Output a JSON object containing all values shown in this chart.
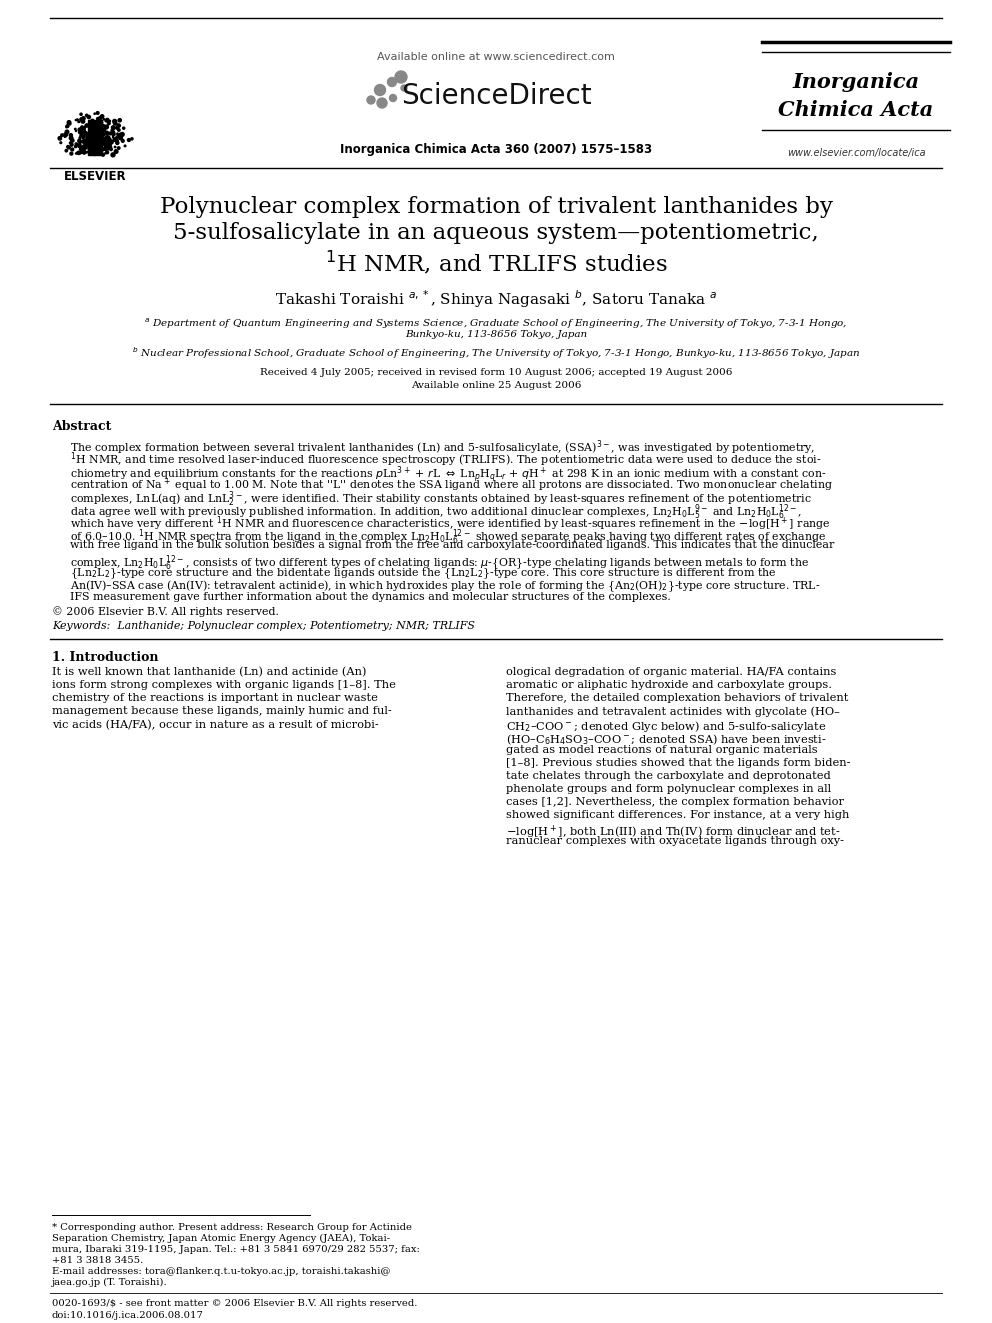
{
  "bg_color": "#ffffff",
  "title_line1": "Polynuclear complex formation of trivalent lanthanides by",
  "title_line2": "5-sulfosalicylate in an aqueous system—potentiometric,",
  "title_line3": "$^{1}$H NMR, and TRLIFS studies",
  "available_online": "Available online at www.sciencedirect.com",
  "journal_ref": "Inorganica Chimica Acta 360 (2007) 1575–1583",
  "journal_name_line1": "Inorganica",
  "journal_name_line2": "Chimica Acta",
  "journal_url": "www.elsevier.com/locate/ica",
  "elsevier_label": "ELSEVIER",
  "authors": "Takashi Toraishi $^{a,*}$, Shinya Nagasaki $^{b}$, Satoru Tanaka $^{a}$",
  "affil_a": "$^{a}$ Department of Quantum Engineering and Systems Science, Graduate School of Engineering, The University of Tokyo, 7-3-1 Hongo,",
  "affil_a2": "Bunkyo-ku, 113-8656 Tokyo, Japan",
  "affil_b": "$^{b}$ Nuclear Professional School, Graduate School of Engineering, The University of Tokyo, 7-3-1 Hongo, Bunkyo-ku, 113-8656 Tokyo, Japan",
  "received": "Received 4 July 2005; received in revised form 10 August 2006; accepted 19 August 2006",
  "available": "Available online 25 August 2006",
  "abstract_title": "Abstract",
  "copyright": "© 2006 Elsevier B.V. All rights reserved.",
  "keywords_label": "Keywords:",
  "keywords_text": "  Lanthanide; Polynuclear complex; Potentiometry; NMR; TRLIFS",
  "section1_title": "1. Introduction",
  "footer_issn": "0020-1693/$ - see front matter © 2006 Elsevier B.V. All rights reserved.",
  "footer_doi": "doi:10.1016/j.ica.2006.08.017",
  "abstract_lines": [
    "The complex formation between several trivalent lanthanides (Ln) and 5-sulfosalicylate, (SSA)$^{3-}$, was investigated by potentiometry,",
    "$^{1}$H NMR, and time resolved laser-induced fluorescence spectroscopy (TRLIFS). The potentiometric data were used to deduce the stoi-",
    "chiometry and equilibrium constants for the reactions $p$Ln$^{3+}$ + $r$L $\\Leftrightarrow$ Ln$_p$H$_q$L$_r$ + $q$H$^+$ at 298 K in an ionic medium with a constant con-",
    "centration of Na$^+$ equal to 1.00 M. Note that ''L'' denotes the SSA ligand where all protons are dissociated. Two mononuclear chelating",
    "complexes, LnL(aq) and LnL$_2^{3-}$, were identified. Their stability constants obtained by least-squares refinement of the potentiometric",
    "data agree well with previously published information. In addition, two additional dinuclear complexes, Ln$_2$H$_0$L$_5^{9-}$ and Ln$_2$H$_0$L$_6^{12-}$,",
    "which have very different $^1$H NMR and fluorescence characteristics, were identified by least-squares refinement in the $-$log[H$^+$] range",
    "of 6.0–10.0. $^1$H NMR spectra from the ligand in the complex Ln$_2$H$_0$L$_6^{12-}$ showed separate peaks having two different rates of exchange",
    "with free ligand in the bulk solution besides a signal from the free and carboxylate-coordinated ligands. This indicates that the dinuclear",
    "complex, Ln$_2$H$_0$L$_6^{12-}$, consists of two different types of chelating ligands: $\\mu$-{OR}-type chelating ligands between metals to form the",
    "{Ln$_2$L$_2$}-type core structure and the bidentate ligands outside the {Ln$_2$L$_2$}-type core. This core structure is different from the",
    "An(IV)–SSA case (An(IV): tetravalent actinide), in which hydroxides play the role of forming the {An$_2$(OH)$_2$}-type core structure. TRL-",
    "IFS measurement gave further information about the dynamics and molecular structures of the complexes."
  ],
  "col1_lines": [
    "It is well known that lanthanide (Ln) and actinide (An)",
    "ions form strong complexes with organic ligands [1–8]. The",
    "chemistry of the reactions is important in nuclear waste",
    "management because these ligands, mainly humic and ful-",
    "vic acids (HA/FA), occur in nature as a result of microbi-"
  ],
  "col2_lines": [
    "ological degradation of organic material. HA/FA contains",
    "aromatic or aliphatic hydroxide and carboxylate groups.",
    "Therefore, the detailed complexation behaviors of trivalent",
    "lanthanides and tetravalent actinides with glycolate (HO–",
    "CH$_2$–COO$^-$; denoted Glyc below) and 5-sulfo-salicylate",
    "(HO–C$_6$H$_4$SO$_3$–COO$^-$; denoted SSA) have been investi-",
    "gated as model reactions of natural organic materials",
    "[1–8]. Previous studies showed that the ligands form biden-",
    "tate chelates through the carboxylate and deprotonated",
    "phenolate groups and form polynuclear complexes in all",
    "cases [1,2]. Nevertheless, the complex formation behavior",
    "showed significant differences. For instance, at a very high",
    "$-$log[H$^+$], both Ln(III) and Th(IV) form dinuclear and tet-",
    "ranuclear complexes with oxyacetate ligands through oxy-"
  ],
  "footnote_lines": [
    "* Corresponding author. Present address: Research Group for Actinide",
    "Separation Chemistry, Japan Atomic Energy Agency (JAEA), Tokai-",
    "mura, Ibaraki 319-1195, Japan. Tel.: +81 3 5841 6970/29 282 5537; fax:",
    "+81 3 3818 3455."
  ],
  "email_line1": "E-mail addresses: tora@flanker.q.t.u-tokyo.ac.jp, toraishi.takashi@",
  "email_line2": "jaea.go.jp (T. Toraishi)."
}
